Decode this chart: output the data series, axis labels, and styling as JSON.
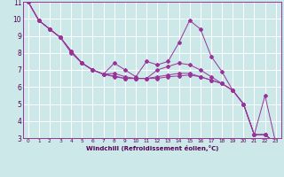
{
  "xlabel": "Windchill (Refroidissement éolien,°C)",
  "background_color": "#cce8e8",
  "grid_color": "#b0d8d8",
  "line_color": "#993399",
  "xlim": [
    -0.5,
    23.5
  ],
  "ylim": [
    3,
    11
  ],
  "xticks": [
    0,
    1,
    2,
    3,
    4,
    5,
    6,
    7,
    8,
    9,
    10,
    11,
    12,
    13,
    14,
    15,
    16,
    17,
    18,
    19,
    20,
    21,
    22,
    23
  ],
  "yticks": [
    3,
    4,
    5,
    6,
    7,
    8,
    9,
    10,
    11
  ],
  "series": [
    [
      11.0,
      9.9,
      9.4,
      8.9,
      8.1,
      7.4,
      7.0,
      6.75,
      6.6,
      6.5,
      6.5,
      6.5,
      6.5,
      6.6,
      6.65,
      6.7,
      6.6,
      6.4,
      6.2,
      5.8,
      5.0,
      3.2,
      3.2,
      2.7
    ],
    [
      11.0,
      9.9,
      9.4,
      8.9,
      8.1,
      7.4,
      7.0,
      6.75,
      6.65,
      6.5,
      6.5,
      6.5,
      6.6,
      6.7,
      6.8,
      6.8,
      6.6,
      6.4,
      6.2,
      5.8,
      5.0,
      3.2,
      3.2,
      2.7
    ],
    [
      11.0,
      9.9,
      9.4,
      8.9,
      8.1,
      7.4,
      7.0,
      6.75,
      6.8,
      6.6,
      6.5,
      6.5,
      7.0,
      7.2,
      7.4,
      7.3,
      7.0,
      6.6,
      6.2,
      5.8,
      5.0,
      3.2,
      3.2,
      2.7
    ],
    [
      11.0,
      9.9,
      9.4,
      8.9,
      8.0,
      7.4,
      7.0,
      6.75,
      7.4,
      7.0,
      6.6,
      7.5,
      7.3,
      7.5,
      8.6,
      9.9,
      9.4,
      7.8,
      6.9,
      5.8,
      5.0,
      3.2,
      5.5,
      2.7
    ]
  ]
}
